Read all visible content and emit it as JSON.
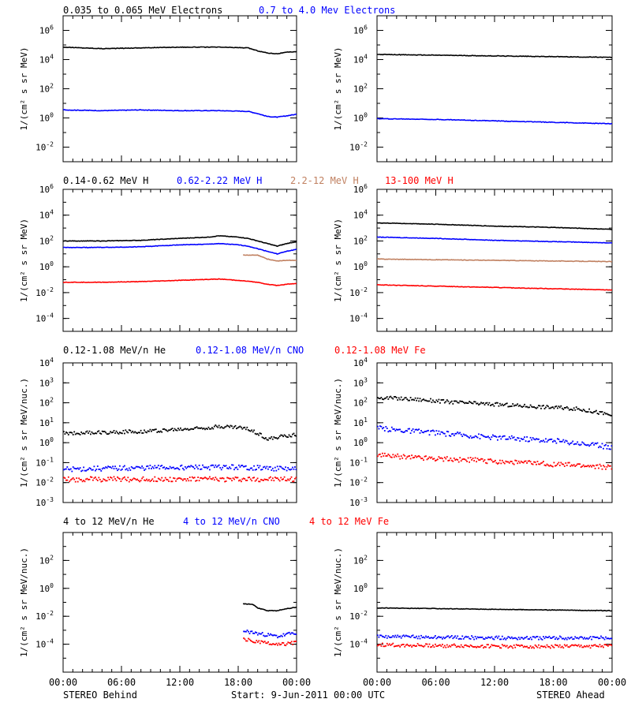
{
  "footer": {
    "left": "STEREO Behind",
    "center": "Start:  9-Jun-2011 00:00 UTC",
    "right": "STEREO Ahead"
  },
  "chart_data": [
    {
      "type": "line",
      "row": 1,
      "column": "left",
      "xlim": [
        "00:00",
        "24:00"
      ],
      "ylim_log10": [
        -3,
        7
      ],
      "ylabel": "1/(cm² s sr MeV)",
      "yticks": [
        "10^-2",
        "10^0",
        "10^2",
        "10^4",
        "10^6"
      ],
      "xticks": [],
      "series": [
        {
          "name": "0.035 to 0.065 MeV Electrons",
          "color": "#000000",
          "style": "line",
          "x": [
            0,
            4,
            8,
            12,
            16,
            19,
            20,
            21,
            22,
            23,
            24
          ],
          "log10_values": [
            4.85,
            4.75,
            4.8,
            4.85,
            4.85,
            4.8,
            4.6,
            4.45,
            4.4,
            4.5,
            4.55
          ]
        },
        {
          "name": "0.7 to 4.0 Mev Electrons",
          "color": "#0000ff",
          "style": "line",
          "x": [
            0,
            4,
            8,
            12,
            16,
            19,
            20,
            21,
            22,
            23,
            24
          ],
          "log10_values": [
            0.55,
            0.5,
            0.55,
            0.5,
            0.5,
            0.45,
            0.3,
            0.1,
            0.05,
            0.15,
            0.25
          ]
        }
      ]
    },
    {
      "type": "line",
      "row": 1,
      "column": "right",
      "xlim": [
        "00:00",
        "24:00"
      ],
      "ylim_log10": [
        -3,
        7
      ],
      "ylabel": "1/(cm² s sr MeV)",
      "yticks": [
        "10^-2",
        "10^0",
        "10^2",
        "10^4",
        "10^6"
      ],
      "xticks": [],
      "series": [
        {
          "color": "#000000",
          "style": "line",
          "x": [
            0,
            6,
            12,
            18,
            24
          ],
          "log10_values": [
            4.35,
            4.3,
            4.25,
            4.2,
            4.15
          ]
        },
        {
          "color": "#0000ff",
          "style": "line",
          "x": [
            0,
            6,
            12,
            18,
            24
          ],
          "log10_values": [
            -0.05,
            -0.1,
            -0.2,
            -0.3,
            -0.4
          ]
        }
      ]
    },
    {
      "type": "line",
      "row": 2,
      "column": "left",
      "xlim": [
        "00:00",
        "24:00"
      ],
      "ylim_log10": [
        -5,
        6
      ],
      "ylabel": "1/(cm² s sr MeV)",
      "yticks": [
        "10^-4",
        "10^-2",
        "10^0",
        "10^2",
        "10^4",
        "10^6"
      ],
      "xticks": [],
      "series": [
        {
          "name": "0.14-0.62 MeV H",
          "color": "#000000",
          "style": "line",
          "x": [
            0,
            4,
            8,
            12,
            15,
            16,
            18,
            19,
            20,
            21,
            22,
            23,
            24
          ],
          "log10_values": [
            2.0,
            2.0,
            2.05,
            2.2,
            2.3,
            2.4,
            2.3,
            2.2,
            2.0,
            1.8,
            1.6,
            1.8,
            1.95
          ]
        },
        {
          "name": "0.62-2.22 MeV H",
          "color": "#0000ff",
          "style": "line",
          "x": [
            0,
            4,
            8,
            12,
            15,
            16,
            18,
            19,
            20,
            21,
            22,
            23,
            24
          ],
          "log10_values": [
            1.5,
            1.5,
            1.55,
            1.7,
            1.75,
            1.8,
            1.7,
            1.6,
            1.4,
            1.2,
            1.0,
            1.2,
            1.35
          ]
        },
        {
          "name": "2.2-12 MeV H",
          "color": "#c08060",
          "style": "line",
          "x": [
            18.5,
            20,
            21,
            22,
            23,
            24
          ],
          "log10_values": [
            0.9,
            0.9,
            0.6,
            0.45,
            0.5,
            0.5
          ]
        },
        {
          "name": "13-100 MeV H",
          "color": "#ff0000",
          "style": "line",
          "x": [
            0,
            4,
            8,
            12,
            16,
            18,
            20,
            21,
            22,
            23,
            24
          ],
          "log10_values": [
            -1.2,
            -1.2,
            -1.15,
            -1.05,
            -0.95,
            -1.05,
            -1.2,
            -1.35,
            -1.45,
            -1.35,
            -1.3
          ]
        }
      ]
    },
    {
      "type": "line",
      "row": 2,
      "column": "right",
      "xlim": [
        "00:00",
        "24:00"
      ],
      "ylim_log10": [
        -5,
        6
      ],
      "ylabel": "1/(cm² s sr MeV)",
      "yticks": [
        "10^-4",
        "10^-2",
        "10^0",
        "10^2",
        "10^4",
        "10^6"
      ],
      "xticks": [],
      "series": [
        {
          "color": "#000000",
          "style": "line",
          "x": [
            0,
            6,
            12,
            18,
            24
          ],
          "log10_values": [
            3.4,
            3.3,
            3.15,
            3.05,
            2.9
          ]
        },
        {
          "color": "#0000ff",
          "style": "line",
          "x": [
            0,
            6,
            12,
            18,
            24
          ],
          "log10_values": [
            2.3,
            2.2,
            2.05,
            1.95,
            1.85
          ]
        },
        {
          "color": "#c08060",
          "style": "line",
          "x": [
            0,
            6,
            12,
            18,
            24
          ],
          "log10_values": [
            0.6,
            0.55,
            0.5,
            0.45,
            0.4
          ]
        },
        {
          "color": "#ff0000",
          "style": "line",
          "x": [
            0,
            6,
            12,
            18,
            24
          ],
          "log10_values": [
            -1.4,
            -1.5,
            -1.6,
            -1.7,
            -1.8
          ]
        }
      ]
    },
    {
      "type": "scatter",
      "row": 3,
      "column": "left",
      "xlim": [
        "00:00",
        "24:00"
      ],
      "ylim_log10": [
        -3,
        4
      ],
      "ylabel": "1/(cm² s sr MeV/nuc.)",
      "yticks": [
        "10^-3",
        "10^-2",
        "10^-1",
        "10^0",
        "10^1",
        "10^2",
        "10^3",
        "10^4"
      ],
      "xticks": [],
      "series": [
        {
          "name": "0.12-1.08 MeV/n He",
          "color": "#000000",
          "style": "dots",
          "x": [
            0,
            4,
            8,
            12,
            15,
            16,
            18,
            19,
            20,
            21,
            22,
            23,
            24
          ],
          "log10_values": [
            0.5,
            0.55,
            0.6,
            0.7,
            0.8,
            0.85,
            0.8,
            0.7,
            0.5,
            0.2,
            0.3,
            0.4,
            0.45
          ]
        },
        {
          "name": "0.12-1.08 MeV/n CNO",
          "color": "#0000ff",
          "style": "dots",
          "x": [
            0,
            6,
            12,
            18,
            24
          ],
          "log10_values": [
            -1.3,
            -1.25,
            -1.2,
            -1.2,
            -1.3
          ]
        },
        {
          "name": "0.12-1.08 MeV Fe",
          "color": "#ff0000",
          "style": "dots",
          "x": [
            0,
            6,
            12,
            18,
            24
          ],
          "log10_values": [
            -1.8,
            -1.8,
            -1.8,
            -1.8,
            -1.8
          ]
        }
      ]
    },
    {
      "type": "scatter",
      "row": 3,
      "column": "right",
      "xlim": [
        "00:00",
        "24:00"
      ],
      "ylim_log10": [
        -3,
        4
      ],
      "ylabel": "1/(cm² s sr MeV/nuc.)",
      "yticks": [
        "10^-3",
        "10^-2",
        "10^-1",
        "10^0",
        "10^1",
        "10^2",
        "10^3",
        "10^4"
      ],
      "xticks": [],
      "series": [
        {
          "color": "#000000",
          "style": "dots",
          "x": [
            0,
            4,
            8,
            12,
            16,
            20,
            22,
            23,
            24
          ],
          "log10_values": [
            2.3,
            2.2,
            2.05,
            1.95,
            1.85,
            1.75,
            1.6,
            1.5,
            1.4
          ]
        },
        {
          "color": "#0000ff",
          "style": "dots",
          "x": [
            0,
            4,
            8,
            12,
            16,
            20,
            24
          ],
          "log10_values": [
            0.75,
            0.6,
            0.45,
            0.3,
            0.2,
            0.05,
            -0.2
          ]
        },
        {
          "color": "#ff0000",
          "style": "dots",
          "x": [
            0,
            6,
            12,
            18,
            24
          ],
          "log10_values": [
            -0.6,
            -0.75,
            -0.9,
            -1.05,
            -1.2
          ]
        }
      ]
    },
    {
      "type": "scatter",
      "row": 4,
      "column": "left",
      "xlim": [
        "00:00",
        "24:00"
      ],
      "ylim_log10": [
        -6,
        4
      ],
      "ylabel": "1/(cm² s sr MeV/nuc.)",
      "yticks": [
        "10^-4",
        "10^-2",
        "10^0",
        "10^2"
      ],
      "xticks": [
        "00:00",
        "06:00",
        "12:00",
        "18:00",
        "00:00"
      ],
      "series": [
        {
          "name": "4 to 12 MeV/n He",
          "color": "#000000",
          "style": "line",
          "x": [
            18.5,
            19.5,
            20,
            21,
            22,
            23,
            24
          ],
          "log10_values": [
            -1.1,
            -1.15,
            -1.4,
            -1.6,
            -1.6,
            -1.45,
            -1.35
          ]
        },
        {
          "name": "4 to 12 MeV/n CNO",
          "color": "#0000ff",
          "style": "dots",
          "x": [
            18.5,
            20,
            22,
            24
          ],
          "log10_values": [
            -3.0,
            -3.2,
            -3.4,
            -3.1
          ]
        },
        {
          "name": "4 to 12 MeV Fe",
          "color": "#ff0000",
          "style": "dots",
          "x": [
            18.5,
            20,
            22,
            24
          ],
          "log10_values": [
            -3.6,
            -3.8,
            -4.0,
            -3.8
          ]
        }
      ]
    },
    {
      "type": "scatter",
      "row": 4,
      "column": "right",
      "xlim": [
        "00:00",
        "24:00"
      ],
      "ylim_log10": [
        -6,
        4
      ],
      "ylabel": "1/(cm² s sr MeV/nuc.)",
      "yticks": [
        "10^-4",
        "10^-2",
        "10^0",
        "10^2"
      ],
      "xticks": [
        "00:00",
        "06:00",
        "12:00",
        "18:00",
        "00:00"
      ],
      "series": [
        {
          "color": "#000000",
          "style": "line",
          "x": [
            0,
            6,
            12,
            18,
            24
          ],
          "log10_values": [
            -1.4,
            -1.45,
            -1.5,
            -1.55,
            -1.6
          ]
        },
        {
          "color": "#0000ff",
          "style": "dots",
          "x": [
            0,
            6,
            12,
            18,
            24
          ],
          "log10_values": [
            -3.4,
            -3.45,
            -3.5,
            -3.5,
            -3.5
          ]
        },
        {
          "color": "#ff0000",
          "style": "dots",
          "x": [
            0,
            6,
            12,
            18,
            24
          ],
          "log10_values": [
            -4.0,
            -4.05,
            -4.1,
            -4.1,
            -4.1
          ]
        }
      ]
    }
  ]
}
